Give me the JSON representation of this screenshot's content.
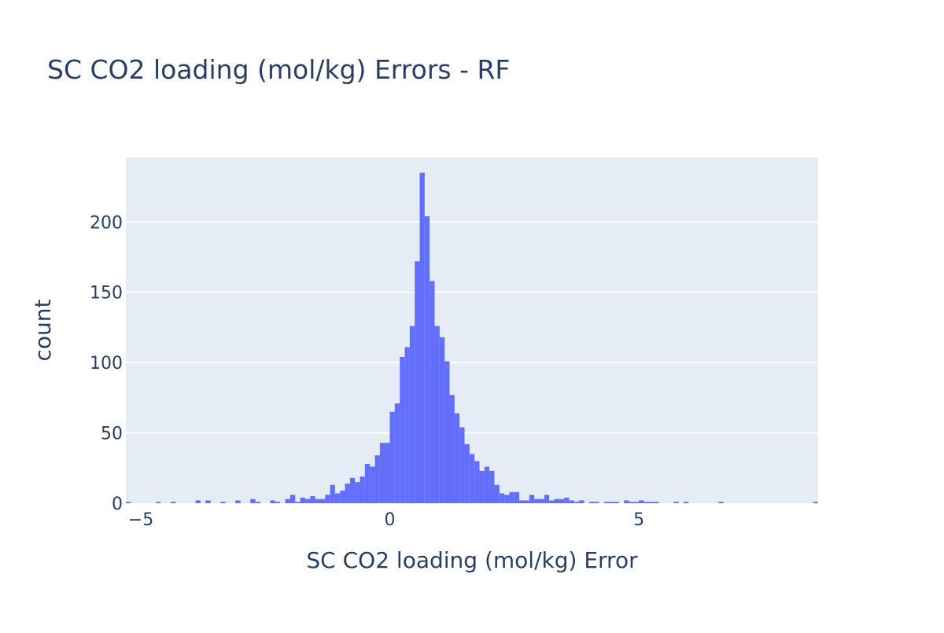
{
  "chart_data": {
    "type": "bar",
    "title": "SC CO2 loading (mol/kg) Errors - RF",
    "xlabel": "SC CO2 loading (mol/kg) Error",
    "ylabel": "count",
    "bin_width": 0.1,
    "bin_start": -5.3,
    "xlim": [
      -5.3,
      8.6
    ],
    "ylim": [
      0,
      246
    ],
    "x_ticks": [
      -5,
      0,
      5
    ],
    "x_tick_labels": [
      "−5",
      "0",
      "5"
    ],
    "y_ticks": [
      0,
      50,
      100,
      150,
      200
    ],
    "y_tick_labels": [
      "0",
      "50",
      "100",
      "150",
      "200"
    ],
    "bar_color": "#636efa",
    "plot_bg": "#e5ecf6",
    "grid_color": "#ffffff",
    "text_color": "#2a3f5f",
    "values": [
      1,
      0,
      0,
      0,
      0,
      0,
      1,
      0,
      0,
      1,
      0,
      0,
      0,
      0,
      2,
      0,
      2,
      0,
      0,
      1,
      0,
      0,
      2,
      0,
      0,
      3,
      1,
      0,
      0,
      2,
      1,
      0,
      3,
      6,
      1,
      4,
      3,
      5,
      3,
      3,
      6,
      13,
      7,
      9,
      14,
      18,
      15,
      19,
      28,
      26,
      34,
      43,
      43,
      65,
      71,
      104,
      111,
      126,
      172,
      235,
      204,
      158,
      126,
      118,
      101,
      77,
      64,
      54,
      42,
      35,
      30,
      23,
      26,
      23,
      13,
      7,
      6,
      8,
      8,
      2,
      2,
      6,
      3,
      3,
      6,
      2,
      3,
      3,
      4,
      2,
      1,
      2,
      0,
      1,
      1,
      0,
      1,
      1,
      1,
      0,
      2,
      1,
      1,
      2,
      1,
      1,
      1,
      0,
      0,
      0,
      1,
      0,
      1,
      0,
      0,
      0,
      0,
      0,
      0,
      1,
      0,
      0,
      0,
      0,
      0,
      0,
      0,
      0,
      0,
      0,
      0,
      0,
      0,
      0,
      0,
      0,
      0,
      0,
      1
    ]
  }
}
